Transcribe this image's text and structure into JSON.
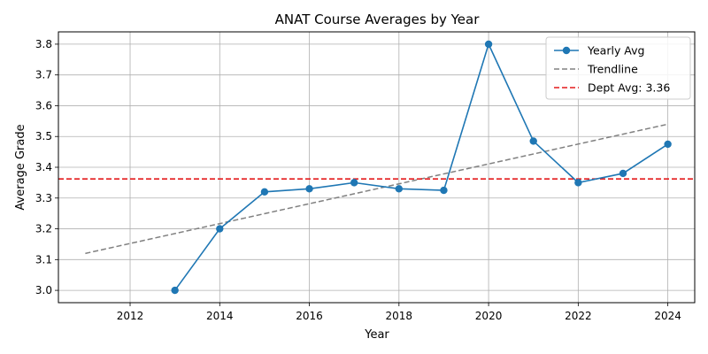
{
  "chart_data": {
    "type": "line",
    "title": "ANAT Course Averages by Year",
    "xlabel": "Year",
    "ylabel": "Average Grade",
    "xlim": [
      2010.4,
      2024.6
    ],
    "ylim": [
      2.96,
      3.84
    ],
    "xticks": [
      2012,
      2014,
      2016,
      2018,
      2020,
      2022,
      2024
    ],
    "yticks": [
      3.0,
      3.1,
      3.2,
      3.3,
      3.4,
      3.5,
      3.6,
      3.7,
      3.8
    ],
    "grid": true,
    "legend_position": "top-right",
    "series": [
      {
        "name": "Yearly Avg",
        "color": "#1f77b4",
        "style": "solid-with-markers",
        "x": [
          2013,
          2014,
          2015,
          2016,
          2017,
          2018,
          2019,
          2020,
          2021,
          2022,
          2023,
          2024
        ],
        "y": [
          3.0,
          3.2,
          3.32,
          3.33,
          3.35,
          3.33,
          3.325,
          3.8,
          3.485,
          3.35,
          3.38,
          3.475
        ]
      },
      {
        "name": "Trendline",
        "color": "#808080",
        "style": "dashed",
        "x": [
          2011,
          2024
        ],
        "y": [
          3.12,
          3.54
        ]
      }
    ],
    "hlines": [
      {
        "name": "Dept Avg: 3.36",
        "value": 3.362,
        "color": "#e41a1c",
        "style": "dashed"
      }
    ]
  }
}
